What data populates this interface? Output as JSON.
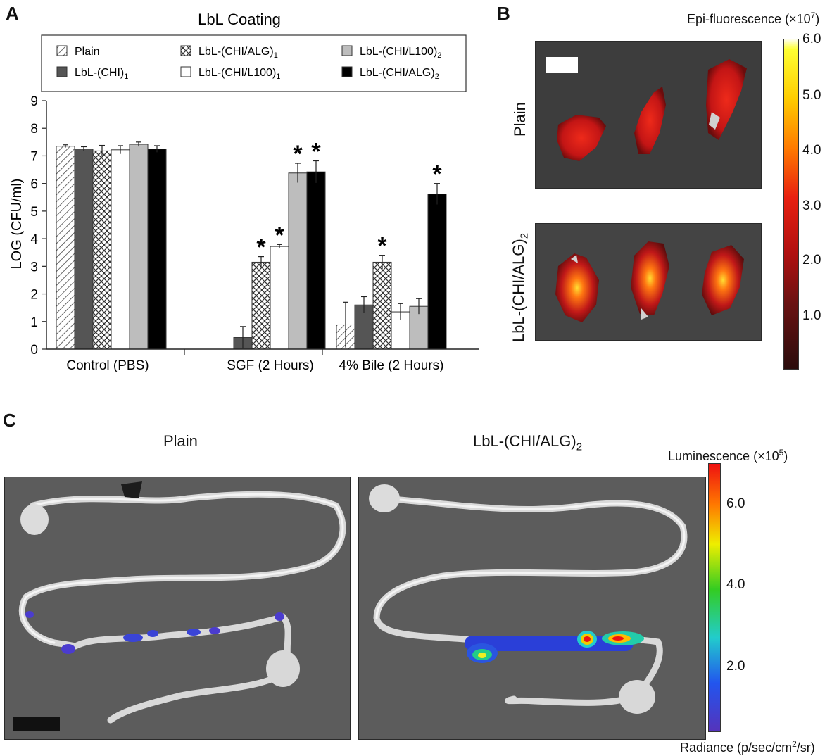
{
  "panels": {
    "a": {
      "letter": "A",
      "chart_data": {
        "type": "bar",
        "title": "LbL Coating",
        "ylabel": "LOG (CFU/ml)",
        "xlabel": "",
        "ylim": [
          0,
          9
        ],
        "yticks": [
          "0",
          "1",
          "2",
          "3",
          "4",
          "5",
          "6",
          "7",
          "8",
          "9"
        ],
        "categories": [
          "Control (PBS)",
          "SGF (2 Hours)",
          "4% Bile (2 Hours)"
        ],
        "legend_placement": "top",
        "series": [
          {
            "name": "Plain",
            "sub": "",
            "fill": "hatch",
            "values": [
              7.35,
              0,
              0.88
            ],
            "errors": [
              0.05,
              0,
              0.82
            ],
            "stars": [
              false,
              false,
              false
            ]
          },
          {
            "name": "LbL-(CHI)",
            "sub": "1",
            "fill": "#555555",
            "values": [
              7.25,
              0.42,
              1.6
            ],
            "errors": [
              0.08,
              0.4,
              0.3
            ],
            "stars": [
              false,
              false,
              false
            ]
          },
          {
            "name": "LbL-(CHI/ALG)",
            "sub": "1",
            "fill": "cross",
            "values": [
              7.18,
              3.15,
              3.15
            ],
            "errors": [
              0.2,
              0.2,
              0.25
            ],
            "stars": [
              false,
              true,
              true
            ]
          },
          {
            "name": "LbL-(CHI/L100)",
            "sub": "1",
            "fill": "#ffffff",
            "values": [
              7.22,
              3.72,
              1.35
            ],
            "errors": [
              0.15,
              0.07,
              0.3
            ],
            "stars": [
              false,
              true,
              false
            ]
          },
          {
            "name": "LbL-(CHI/L100)",
            "sub": "2",
            "fill": "#bdbdbd",
            "values": [
              7.42,
              6.38,
              1.55
            ],
            "errors": [
              0.08,
              0.35,
              0.28
            ],
            "stars": [
              false,
              true,
              false
            ]
          },
          {
            "name": "LbL-(CHI/ALG)",
            "sub": "2",
            "fill": "#000000",
            "values": [
              7.25,
              6.42,
              5.62
            ],
            "errors": [
              0.12,
              0.4,
              0.38
            ],
            "stars": [
              false,
              true,
              true
            ]
          }
        ],
        "star_symbol": "*"
      }
    },
    "b": {
      "letter": "B",
      "row_labels": [
        "Plain",
        "LbL-(CHI/ALG)"
      ],
      "row_label_sub": "2",
      "colorbar": {
        "title_prefix": "Epi-fluorescence (×10",
        "title_exp": "7",
        "title_suffix": ")",
        "ticks": [
          "6.0",
          "5.0",
          "4.0",
          "3.0",
          "2.0",
          "1.0"
        ],
        "colors": [
          "#ffff33",
          "#ff9900",
          "#ee2200",
          "#b01010",
          "#5a1010",
          "#2a0a0a"
        ]
      }
    },
    "c": {
      "letter": "C",
      "titles": [
        "Plain",
        "LbL-(CHI/ALG)"
      ],
      "title_sub": "2",
      "colorbar": {
        "title_prefix": "Luminescence (×10",
        "title_exp": "5",
        "title_suffix": ")",
        "ticks": [
          "6.0",
          "4.0",
          "2.0"
        ],
        "footer_prefix": "Radiance (p/sec/cm",
        "footer_exp": "2",
        "footer_suffix": "/sr)",
        "colors": [
          "#ee1111",
          "#ffaa00",
          "#eeee00",
          "#22cc22",
          "#22cccc",
          "#2244ee",
          "#5533bb"
        ]
      }
    }
  }
}
